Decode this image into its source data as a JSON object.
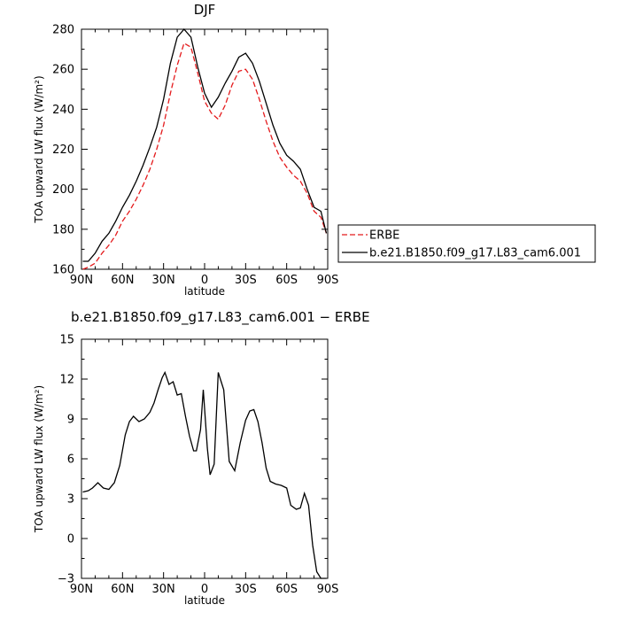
{
  "chart_data": [
    {
      "type": "line",
      "title": "DJF",
      "xlabel": "latitude",
      "ylabel": "TOA upward LW flux (W/m²)",
      "xlim": [
        90,
        -90
      ],
      "ylim": [
        160,
        280
      ],
      "x_ticks": [
        90,
        60,
        30,
        0,
        -30,
        -60,
        -90
      ],
      "x_tick_labels": [
        "90N",
        "60N",
        "30N",
        "0",
        "30S",
        "60S",
        "90S"
      ],
      "y_ticks": [
        160,
        180,
        200,
        220,
        240,
        260,
        280
      ],
      "y_tick_labels": [
        "160",
        "180",
        "200",
        "220",
        "240",
        "260",
        "280"
      ],
      "legend_position": "right",
      "series": [
        {
          "name": "ERBE",
          "color": "#e41a1c",
          "dash": "dashed",
          "x": [
            89,
            85,
            80,
            75,
            70,
            65,
            60,
            55,
            50,
            45,
            40,
            35,
            30,
            25,
            20,
            15,
            10,
            5,
            0,
            -5,
            -10,
            -15,
            -20,
            -25,
            -30,
            -35,
            -40,
            -45,
            -50,
            -55,
            -60,
            -65,
            -70,
            -75,
            -80,
            -85,
            -89
          ],
          "y": [
            160,
            161,
            163,
            168,
            172,
            177,
            184,
            189,
            195,
            202,
            210,
            220,
            232,
            248,
            262,
            273,
            271,
            258,
            244,
            238,
            235,
            242,
            252,
            259,
            260,
            255,
            245,
            234,
            224,
            216,
            211,
            207,
            204,
            198,
            189,
            186,
            178
          ]
        },
        {
          "name": "b.e21.B1850.f09_g17.L83_cam6.001",
          "color": "#000000",
          "dash": "solid",
          "x": [
            89,
            85,
            80,
            75,
            70,
            65,
            60,
            55,
            50,
            45,
            40,
            35,
            30,
            25,
            20,
            15,
            10,
            5,
            0,
            -5,
            -10,
            -15,
            -20,
            -25,
            -30,
            -35,
            -40,
            -45,
            -50,
            -55,
            -60,
            -65,
            -70,
            -75,
            -80,
            -85,
            -89
          ],
          "y": [
            164,
            164,
            168,
            174,
            178,
            184,
            191,
            197,
            204,
            212,
            221,
            231,
            245,
            263,
            276,
            280,
            276,
            261,
            248,
            241,
            246,
            253,
            259,
            266,
            268,
            263,
            254,
            243,
            232,
            223,
            217,
            214,
            210,
            200,
            191,
            189,
            178
          ]
        }
      ]
    },
    {
      "type": "line",
      "title": "b.e21.B1850.f09_g17.L83_cam6.001 − ERBE",
      "xlabel": "latitude",
      "ylabel": "TOA upward LW flux (W/m²)",
      "xlim": [
        90,
        -90
      ],
      "ylim": [
        -3,
        15
      ],
      "x_ticks": [
        90,
        60,
        30,
        0,
        -30,
        -60,
        -90
      ],
      "x_tick_labels": [
        "90N",
        "60N",
        "30N",
        "0",
        "30S",
        "60S",
        "90S"
      ],
      "y_ticks": [
        -3,
        0,
        3,
        6,
        9,
        12,
        15
      ],
      "y_tick_labels": [
        "−3",
        "0",
        "3",
        "6",
        "9",
        "12",
        "15"
      ],
      "series": [
        {
          "color": "#000000",
          "dash": "solid",
          "x": [
            89,
            85,
            82,
            78,
            74,
            70,
            66,
            62,
            58,
            55,
            52,
            48,
            44,
            40,
            37,
            34,
            31,
            29,
            26,
            23,
            20,
            17,
            14,
            11,
            8,
            6,
            3,
            1,
            -2,
            -4,
            -7,
            -10,
            -14,
            -18,
            -22,
            -26,
            -30,
            -33,
            -36,
            -39,
            -42,
            -45,
            -48,
            -52,
            -56,
            -60,
            -63,
            -67,
            -70,
            -73,
            -76,
            -79,
            -82,
            -85,
            -87,
            -89
          ],
          "y": [
            3.5,
            3.6,
            3.8,
            4.2,
            3.8,
            3.7,
            4.2,
            5.5,
            7.8,
            8.8,
            9.2,
            8.8,
            9.0,
            9.5,
            10.2,
            11.2,
            12.1,
            12.5,
            11.6,
            11.8,
            10.8,
            10.9,
            9.2,
            7.7,
            6.6,
            6.6,
            8.2,
            11.2,
            6.8,
            4.8,
            5.6,
            12.5,
            11.2,
            5.8,
            5.1,
            7.2,
            8.9,
            9.6,
            9.7,
            8.8,
            7.2,
            5.3,
            4.3,
            4.1,
            4.0,
            3.8,
            2.5,
            2.2,
            2.3,
            3.4,
            2.5,
            -0.5,
            -2.5,
            -3.0,
            -3.0,
            -3.0
          ]
        }
      ]
    }
  ]
}
